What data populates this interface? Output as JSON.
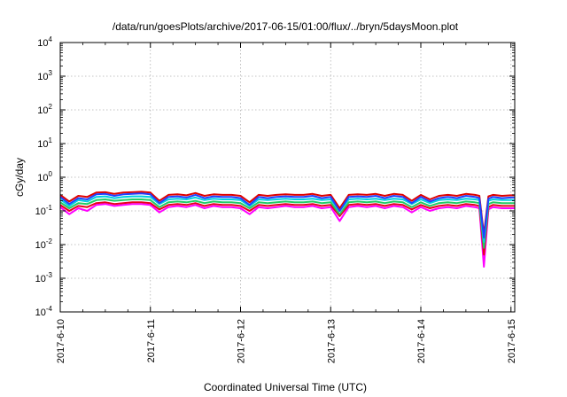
{
  "chart_data": {
    "type": "line",
    "title": "/data/run/goesPlots/archive/2017-06-15/01:00/flux/../bryn/5daysMoon.plot",
    "xlabel": "Coordinated Universal Time (UTC)",
    "ylabel": "cGy/day",
    "yscale": "log",
    "ylim": [
      0.0001,
      10000
    ],
    "xlim": [
      "2017-06-10 00:00",
      "2017-06-15 01:00"
    ],
    "grid": true,
    "legend": "none",
    "x_ticks": [
      "2017-6-10",
      "2017-6-11",
      "2017-6-12",
      "2017-6-13",
      "2017-6-14",
      "2017-6-15"
    ],
    "y_ticks": [
      {
        "base": "10",
        "exp": "-4"
      },
      {
        "base": "10",
        "exp": "-3"
      },
      {
        "base": "10",
        "exp": "-2"
      },
      {
        "base": "10",
        "exp": "-1"
      },
      {
        "base": "10",
        "exp": "0"
      },
      {
        "base": "10",
        "exp": "1"
      },
      {
        "base": "10",
        "exp": "2"
      },
      {
        "base": "10",
        "exp": "3"
      },
      {
        "base": "10",
        "exp": "4"
      }
    ],
    "x_days": [
      0,
      0.1,
      0.2,
      0.3,
      0.4,
      0.5,
      0.6,
      0.7,
      0.8,
      0.9,
      1.0,
      1.1,
      1.2,
      1.3,
      1.4,
      1.5,
      1.6,
      1.7,
      1.8,
      1.9,
      2.0,
      2.1,
      2.2,
      2.3,
      2.4,
      2.5,
      2.6,
      2.7,
      2.8,
      2.9,
      3.0,
      3.1,
      3.2,
      3.3,
      3.4,
      3.5,
      3.6,
      3.7,
      3.8,
      3.9,
      4.0,
      4.1,
      4.2,
      4.3,
      4.4,
      4.5,
      4.6,
      4.65,
      4.7,
      4.75,
      4.8,
      4.9,
      5.0,
      5.04
    ],
    "series": [
      {
        "color": "#ff00ff",
        "values": [
          0.13,
          0.08,
          0.12,
          0.1,
          0.15,
          0.16,
          0.14,
          0.15,
          0.16,
          0.16,
          0.15,
          0.09,
          0.13,
          0.14,
          0.13,
          0.15,
          0.12,
          0.14,
          0.13,
          0.13,
          0.12,
          0.08,
          0.13,
          0.12,
          0.13,
          0.14,
          0.13,
          0.13,
          0.14,
          0.12,
          0.13,
          0.05,
          0.13,
          0.14,
          0.13,
          0.14,
          0.12,
          0.14,
          0.13,
          0.09,
          0.13,
          0.1,
          0.12,
          0.13,
          0.12,
          0.14,
          0.13,
          0.12,
          0.0022,
          0.11,
          0.13,
          0.12,
          0.12,
          0.12
        ]
      },
      {
        "color": "#e8001b",
        "values": [
          0.15,
          0.1,
          0.14,
          0.13,
          0.17,
          0.18,
          0.16,
          0.17,
          0.18,
          0.18,
          0.17,
          0.11,
          0.15,
          0.16,
          0.15,
          0.17,
          0.14,
          0.16,
          0.15,
          0.15,
          0.14,
          0.1,
          0.15,
          0.14,
          0.15,
          0.16,
          0.15,
          0.15,
          0.16,
          0.14,
          0.15,
          0.07,
          0.15,
          0.16,
          0.15,
          0.16,
          0.14,
          0.16,
          0.15,
          0.11,
          0.15,
          0.12,
          0.14,
          0.15,
          0.14,
          0.16,
          0.15,
          0.14,
          0.005,
          0.13,
          0.15,
          0.14,
          0.14,
          0.14
        ]
      },
      {
        "color": "#22cc66",
        "values": [
          0.18,
          0.12,
          0.17,
          0.16,
          0.21,
          0.22,
          0.2,
          0.21,
          0.22,
          0.22,
          0.21,
          0.13,
          0.18,
          0.19,
          0.18,
          0.2,
          0.17,
          0.19,
          0.18,
          0.18,
          0.17,
          0.12,
          0.18,
          0.17,
          0.18,
          0.19,
          0.18,
          0.18,
          0.19,
          0.17,
          0.18,
          0.08,
          0.18,
          0.19,
          0.18,
          0.19,
          0.17,
          0.19,
          0.18,
          0.13,
          0.18,
          0.14,
          0.17,
          0.18,
          0.17,
          0.19,
          0.18,
          0.17,
          0.008,
          0.16,
          0.18,
          0.17,
          0.17,
          0.17
        ]
      },
      {
        "color": "#00cfe0",
        "values": [
          0.22,
          0.14,
          0.21,
          0.19,
          0.26,
          0.27,
          0.24,
          0.26,
          0.27,
          0.27,
          0.26,
          0.16,
          0.22,
          0.23,
          0.22,
          0.25,
          0.21,
          0.23,
          0.22,
          0.22,
          0.21,
          0.14,
          0.22,
          0.21,
          0.22,
          0.23,
          0.22,
          0.22,
          0.23,
          0.21,
          0.22,
          0.1,
          0.22,
          0.23,
          0.22,
          0.23,
          0.21,
          0.23,
          0.22,
          0.16,
          0.22,
          0.17,
          0.21,
          0.22,
          0.21,
          0.23,
          0.22,
          0.21,
          0.012,
          0.2,
          0.22,
          0.21,
          0.21,
          0.21
        ]
      },
      {
        "color": "#e00000",
        "values": [
          0.3,
          0.19,
          0.28,
          0.26,
          0.35,
          0.36,
          0.32,
          0.35,
          0.36,
          0.37,
          0.35,
          0.2,
          0.3,
          0.31,
          0.29,
          0.34,
          0.28,
          0.31,
          0.3,
          0.3,
          0.28,
          0.18,
          0.3,
          0.28,
          0.3,
          0.31,
          0.3,
          0.3,
          0.32,
          0.28,
          0.3,
          0.12,
          0.3,
          0.31,
          0.3,
          0.32,
          0.28,
          0.32,
          0.3,
          0.2,
          0.3,
          0.22,
          0.28,
          0.3,
          0.28,
          0.32,
          0.3,
          0.28,
          0.02,
          0.27,
          0.3,
          0.28,
          0.29,
          0.29
        ]
      },
      {
        "color": "#2040ff",
        "values": [
          0.26,
          0.16,
          0.24,
          0.22,
          0.31,
          0.32,
          0.28,
          0.31,
          0.32,
          0.33,
          0.31,
          0.17,
          0.26,
          0.27,
          0.25,
          0.3,
          0.24,
          0.27,
          0.26,
          0.26,
          0.24,
          0.15,
          0.26,
          0.24,
          0.26,
          0.27,
          0.26,
          0.26,
          0.28,
          0.24,
          0.26,
          0.1,
          0.26,
          0.27,
          0.26,
          0.28,
          0.24,
          0.28,
          0.26,
          0.17,
          0.26,
          0.19,
          0.24,
          0.26,
          0.24,
          0.28,
          0.26,
          0.24,
          0.016,
          0.23,
          0.26,
          0.24,
          0.25,
          0.25
        ]
      }
    ]
  }
}
